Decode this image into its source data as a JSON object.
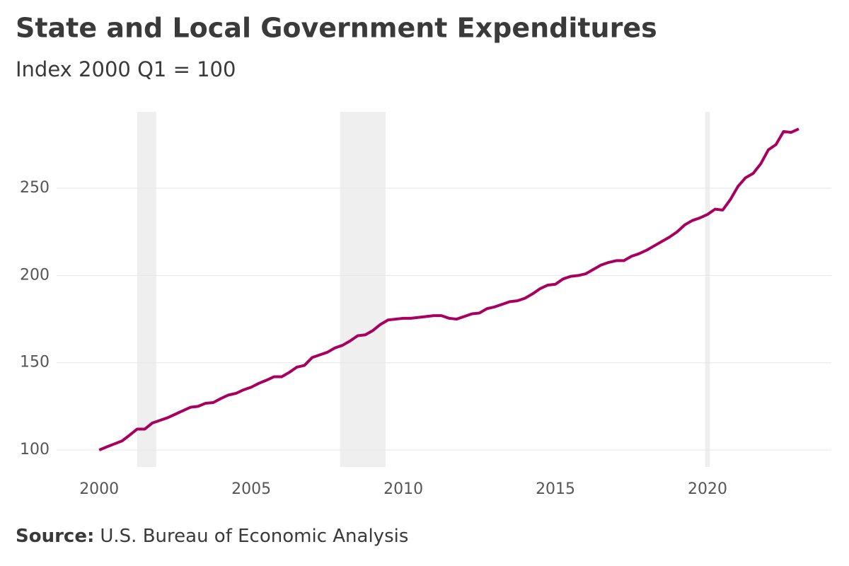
{
  "chart_data": {
    "type": "line",
    "title": "State and Local Government Expenditures",
    "subtitle": "Index 2000 Q1 = 100",
    "source_label": "Source:",
    "source_text": "U.S. Bureau of Economic Analysis",
    "x": [
      2000,
      2000.25,
      2000.5,
      2000.75,
      2001,
      2001.25,
      2001.5,
      2001.75,
      2002,
      2002.25,
      2002.5,
      2002.75,
      2003,
      2003.25,
      2003.5,
      2003.75,
      2004,
      2004.25,
      2004.5,
      2004.75,
      2005,
      2005.25,
      2005.5,
      2005.75,
      2006,
      2006.25,
      2006.5,
      2006.75,
      2007,
      2007.25,
      2007.5,
      2007.75,
      2008,
      2008.25,
      2008.5,
      2008.75,
      2009,
      2009.25,
      2009.5,
      2009.75,
      2010,
      2010.25,
      2010.5,
      2010.75,
      2011,
      2011.25,
      2011.5,
      2011.75,
      2012,
      2012.25,
      2012.5,
      2012.75,
      2013,
      2013.25,
      2013.5,
      2013.75,
      2014,
      2014.25,
      2014.5,
      2014.75,
      2015,
      2015.25,
      2015.5,
      2015.75,
      2016,
      2016.25,
      2016.5,
      2016.75,
      2017,
      2017.25,
      2017.5,
      2017.75,
      2018,
      2018.25,
      2018.5,
      2018.75,
      2019,
      2019.25,
      2019.5,
      2019.75,
      2020,
      2020.25,
      2020.5,
      2020.75,
      2021,
      2021.25,
      2021.5,
      2021.75,
      2022,
      2022.25,
      2022.5,
      2022.75,
      2023
    ],
    "series": [
      {
        "color": "#a8005e",
        "values": [
          100,
          101.8,
          103.5,
          105.2,
          108.5,
          112,
          112,
          115.5,
          117,
          118.5,
          120.5,
          122.5,
          124.5,
          125,
          126.8,
          127.2,
          129.5,
          131.5,
          132.5,
          134.5,
          136,
          138.2,
          140,
          142,
          142,
          144.5,
          147.5,
          148.5,
          153,
          154.5,
          156,
          158.5,
          160,
          162.5,
          165.5,
          166,
          168.5,
          172,
          174.5,
          175,
          175.5,
          175.5,
          176,
          176.5,
          177,
          177,
          175.5,
          175,
          176.5,
          178,
          178.5,
          181,
          182,
          183.5,
          185,
          185.5,
          187,
          189.5,
          192.5,
          194.5,
          195,
          198,
          199.5,
          200,
          201,
          203.5,
          206,
          207.5,
          208.5,
          208.5,
          211,
          212.5,
          214.5,
          217,
          219.5,
          222,
          225,
          229,
          231.5,
          233,
          235,
          238,
          237.5,
          243.5,
          251,
          256,
          258.5,
          264,
          272,
          275,
          282.5,
          282,
          284
        ]
      }
    ],
    "shaded_periods": [
      [
        2001.25,
        2001.875
      ],
      [
        2007.917,
        2009.417
      ],
      [
        2019.92,
        2020.08
      ]
    ],
    "shade_color": "#efefef",
    "xlim": [
      1998.6,
      2024.07
    ],
    "xticks": [
      2000,
      2005,
      2010,
      2015,
      2020
    ],
    "ylim": [
      90.3,
      293.8
    ],
    "yticks": [
      100,
      150,
      200,
      250
    ],
    "grid": true
  }
}
